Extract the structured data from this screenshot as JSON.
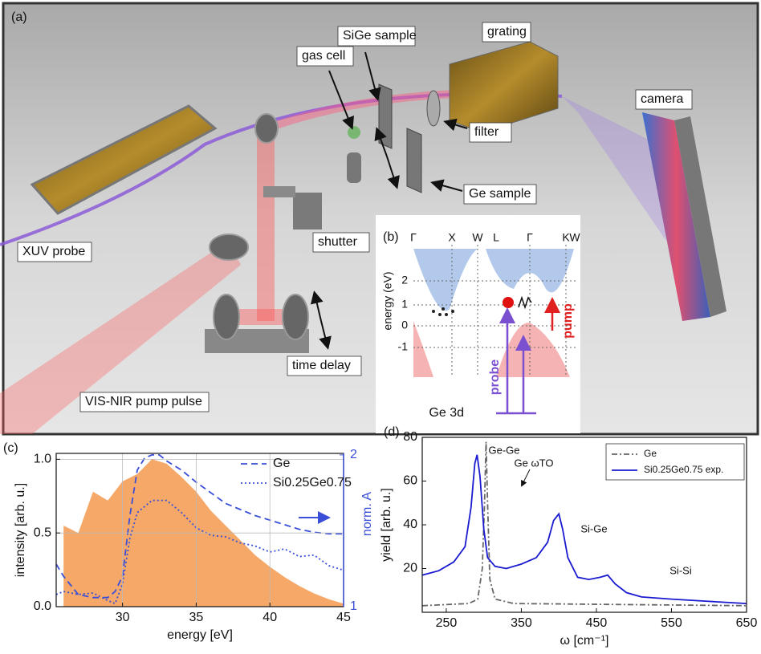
{
  "panel_a": {
    "label": "(a)",
    "labels": [
      "SiGe sample",
      "grating",
      "gas cell",
      "camera",
      "filter",
      "Ge sample",
      "XUV probe",
      "shutter",
      "time delay",
      "VIS-NIR pump pulse"
    ]
  },
  "panel_b": {
    "label": "(b)",
    "kpoints": [
      "Γ",
      "X",
      "W",
      "L",
      "Γ",
      "K",
      "W"
    ],
    "ylabel": "energy (eV)",
    "yticks": [
      2,
      1,
      0,
      -1
    ],
    "probe": "probe",
    "pump": "pump",
    "core": "Ge 3d"
  },
  "chart_data": [
    {
      "type": "line",
      "label": "(c)",
      "xlabel": "energy [eV]",
      "ylabel": "intensity [arb. u.]",
      "y2label": "norm. A",
      "xlim": [
        25.5,
        45
      ],
      "xticks": [
        30,
        35,
        40,
        45
      ],
      "ylim": [
        0,
        1.04
      ],
      "yticks": [
        {
          "value": 0,
          "label": "0.0"
        },
        {
          "value": 0.5,
          "label": "0.5"
        },
        {
          "value": 1,
          "label": "1.0"
        }
      ],
      "y2lim": [
        1,
        2.01
      ],
      "y2ticks": [
        1,
        2
      ],
      "grid": true,
      "series": [
        {
          "color": "#f5a868",
          "fill": true,
          "x": [
            26,
            27,
            28,
            29,
            30,
            31,
            32,
            33,
            34,
            35,
            36,
            37,
            38,
            39,
            40,
            41,
            42,
            43,
            44,
            45
          ],
          "values": [
            0.55,
            0.5,
            0.78,
            0.72,
            0.85,
            0.9,
            1.0,
            0.97,
            0.88,
            0.78,
            0.65,
            0.55,
            0.45,
            0.35,
            0.27,
            0.2,
            0.14,
            0.09,
            0.05,
            0.02
          ]
        },
        {
          "name": "Ge",
          "color": "#3a4fd8",
          "dash": "dashed",
          "axis": "y2",
          "x": [
            25.5,
            26,
            27,
            28,
            29,
            29.5,
            30,
            30.5,
            31,
            31.5,
            32,
            32.5,
            33,
            34,
            35,
            36,
            37,
            38,
            39,
            40,
            41,
            42,
            43,
            44,
            45
          ],
          "values": [
            1.28,
            1.2,
            1.08,
            1.06,
            1.06,
            1.1,
            1.2,
            1.6,
            1.9,
            1.98,
            2.0,
            2.0,
            1.96,
            1.9,
            1.82,
            1.75,
            1.68,
            1.64,
            1.6,
            1.57,
            1.54,
            1.51,
            1.49,
            1.48,
            1.48
          ]
        },
        {
          "name": "Si0.25Ge0.75",
          "color": "#3a4fd8",
          "dash": "dotted",
          "axis": "y2",
          "x": [
            25.5,
            26,
            27,
            28,
            29,
            29.5,
            30,
            30.5,
            31,
            31.5,
            32,
            33,
            34,
            35,
            36,
            37,
            38,
            39,
            40,
            41,
            42,
            43,
            44,
            45
          ],
          "values": [
            1.08,
            1.1,
            1.08,
            1.09,
            1.04,
            1.02,
            1.15,
            1.45,
            1.62,
            1.66,
            1.7,
            1.7,
            1.62,
            1.52,
            1.47,
            1.46,
            1.42,
            1.4,
            1.36,
            1.38,
            1.33,
            1.34,
            1.27,
            1.24
          ]
        }
      ]
    },
    {
      "type": "line",
      "label": "(d)",
      "xlabel": "ω [cm⁻¹]",
      "ylabel": "yield [arb. u.]",
      "xlim": [
        218,
        650
      ],
      "xticks": [
        250,
        350,
        450,
        550,
        650
      ],
      "ylim": [
        0,
        80
      ],
      "yticks": [
        20,
        40,
        60,
        80
      ],
      "grid": false,
      "annotations": [
        "Ge-Ge",
        "Ge ωTO",
        "Si-Ge",
        "Si-Si"
      ],
      "series": [
        {
          "name": "Ge",
          "color": "#666666",
          "dash": "dashdot",
          "x": [
            218,
            280,
            292,
            298,
            301,
            303,
            305,
            308,
            315,
            340,
            650
          ],
          "values": [
            3,
            4,
            6,
            20,
            50,
            78,
            50,
            15,
            6,
            4,
            3
          ]
        },
        {
          "name": "Si0.25Ge0.75 exp.",
          "color": "#1a1ad0",
          "x": [
            218,
            240,
            260,
            275,
            283,
            288,
            291,
            295,
            300,
            305,
            315,
            330,
            350,
            370,
            385,
            393,
            400,
            405,
            412,
            425,
            440,
            455,
            465,
            475,
            490,
            510,
            550,
            600,
            650
          ],
          "values": [
            17,
            19,
            23,
            30,
            48,
            68,
            72,
            62,
            38,
            25,
            21,
            20,
            22,
            25,
            32,
            42,
            45,
            38,
            25,
            16,
            15,
            16,
            17,
            13,
            9,
            7,
            6,
            5,
            4
          ]
        }
      ]
    }
  ]
}
